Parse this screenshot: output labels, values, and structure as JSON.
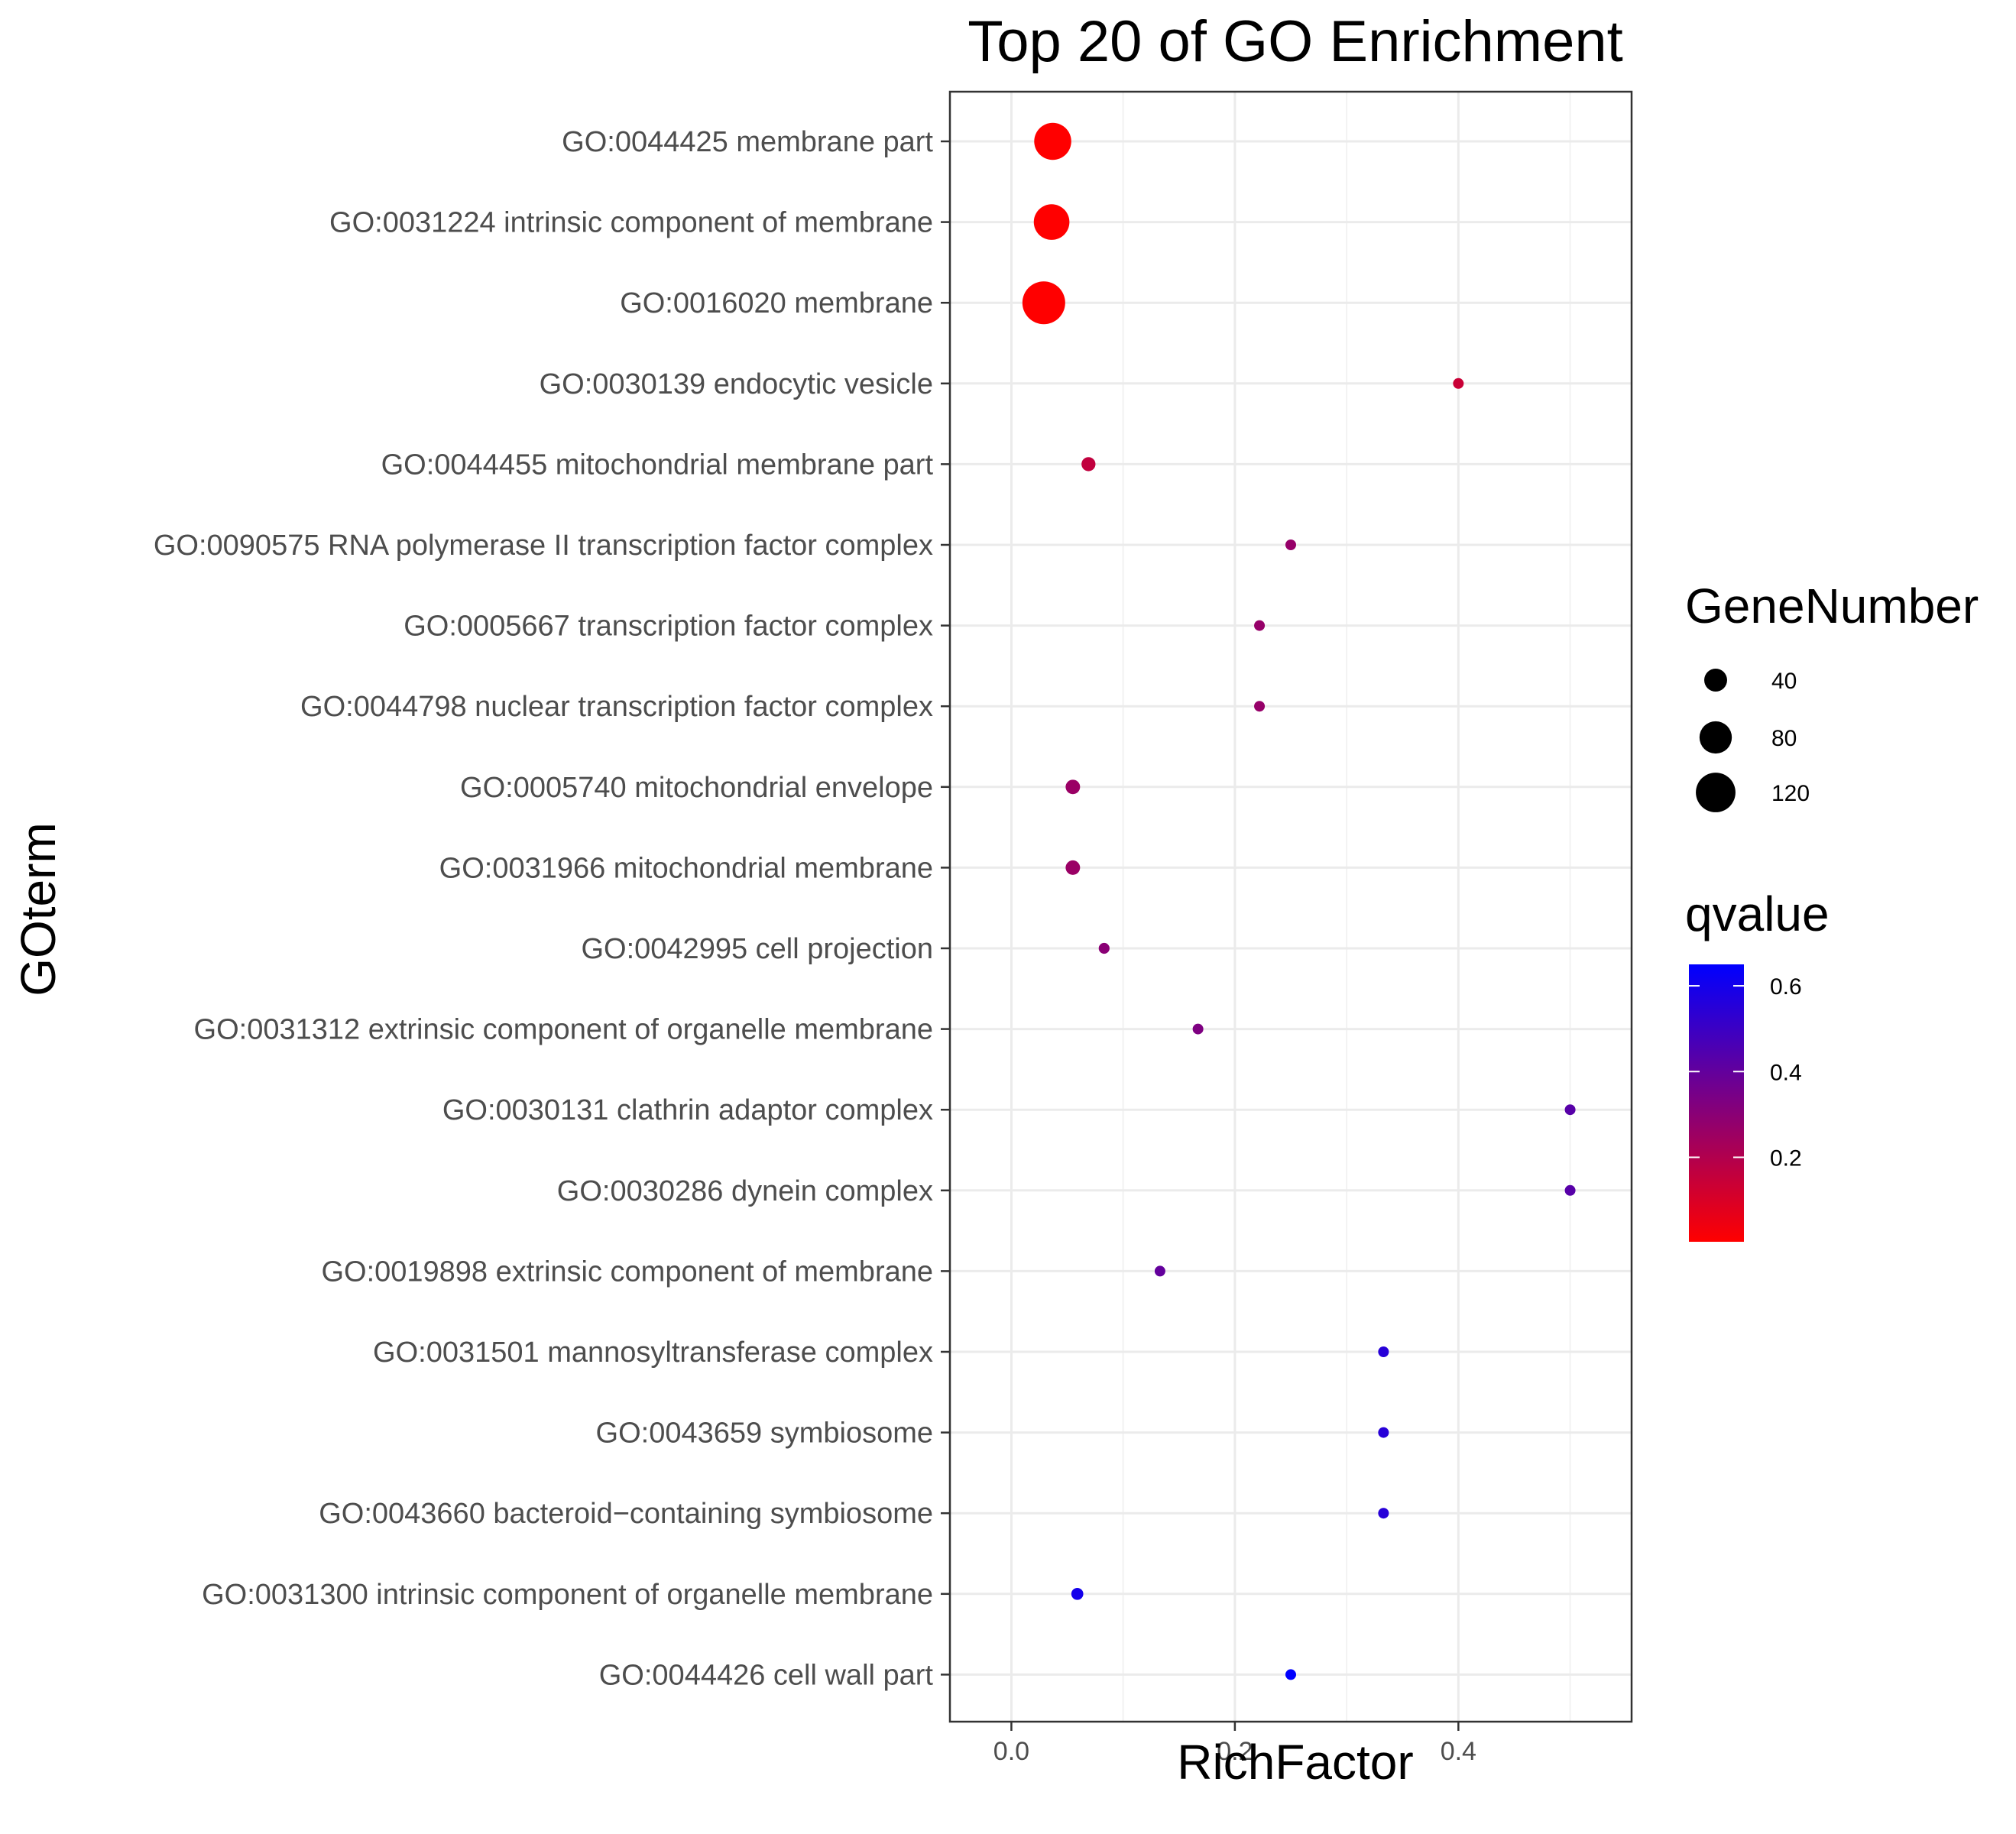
{
  "chart_data": {
    "type": "scatter",
    "title": "Top 20 of GO Enrichment",
    "xlabel": "RichFactor",
    "ylabel": "GOterm",
    "xlim": [
      -0.055,
      0.555
    ],
    "x_ticks": [
      0.0,
      0.2,
      0.4
    ],
    "x_tick_labels": [
      "0.0",
      "0.2",
      "0.4"
    ],
    "grid": true,
    "categories": [
      "GO:0044425 membrane part",
      "GO:0031224 intrinsic component of membrane",
      "GO:0016020 membrane",
      "GO:0030139 endocytic vesicle",
      "GO:0044455 mitochondrial membrane part",
      "GO:0090575 RNA polymerase II transcription factor complex",
      "GO:0005667 transcription factor complex",
      "GO:0044798 nuclear transcription factor complex",
      "GO:0005740 mitochondrial envelope",
      "GO:0031966 mitochondrial membrane",
      "GO:0042995 cell projection",
      "GO:0031312 extrinsic component of organelle membrane",
      "GO:0030131 clathrin adaptor complex",
      "GO:0030286 dynein complex",
      "GO:0019898 extrinsic component of membrane",
      "GO:0031501 mannosyltransferase complex",
      "GO:0043659 symbiosome",
      "GO:0043660 bacteroid−containing symbiosome",
      "GO:0031300 intrinsic component of organelle membrane",
      "GO:0044426 cell wall part"
    ],
    "points": [
      {
        "term": "GO:0044425 membrane part",
        "rich_factor": 0.037,
        "gene_number": 105,
        "qvalue": 0.003
      },
      {
        "term": "GO:0031224 intrinsic component of membrane",
        "rich_factor": 0.036,
        "gene_number": 97,
        "qvalue": 0.003
      },
      {
        "term": "GO:0016020 membrane",
        "rich_factor": 0.029,
        "gene_number": 140,
        "qvalue": 0.003
      },
      {
        "term": "GO:0030139 endocytic vesicle",
        "rich_factor": 0.4,
        "gene_number": 2,
        "qvalue": 0.14
      },
      {
        "term": "GO:0044455 mitochondrial membrane part",
        "rich_factor": 0.069,
        "gene_number": 15,
        "qvalue": 0.16
      },
      {
        "term": "GO:0090575 RNA polymerase II transcription factor complex",
        "rich_factor": 0.25,
        "gene_number": 3,
        "qvalue": 0.27
      },
      {
        "term": "GO:0005667 transcription factor complex",
        "rich_factor": 0.222,
        "gene_number": 4,
        "qvalue": 0.27
      },
      {
        "term": "GO:0044798 nuclear transcription factor complex",
        "rich_factor": 0.222,
        "gene_number": 4,
        "qvalue": 0.27
      },
      {
        "term": "GO:0005740 mitochondrial envelope",
        "rich_factor": 0.055,
        "gene_number": 16,
        "qvalue": 0.26
      },
      {
        "term": "GO:0031966 mitochondrial membrane",
        "rich_factor": 0.055,
        "gene_number": 16,
        "qvalue": 0.26
      },
      {
        "term": "GO:0042995 cell projection",
        "rich_factor": 0.083,
        "gene_number": 9,
        "qvalue": 0.3
      },
      {
        "term": "GO:0031312 extrinsic component of organelle membrane",
        "rich_factor": 0.167,
        "gene_number": 4,
        "qvalue": 0.33
      },
      {
        "term": "GO:0030131 clathrin adaptor complex",
        "rich_factor": 0.5,
        "gene_number": 1,
        "qvalue": 0.43
      },
      {
        "term": "GO:0030286 dynein complex",
        "rich_factor": 0.5,
        "gene_number": 1,
        "qvalue": 0.43
      },
      {
        "term": "GO:0019898 extrinsic component of membrane",
        "rich_factor": 0.133,
        "gene_number": 4,
        "qvalue": 0.4
      },
      {
        "term": "GO:0031501 mannosyltransferase complex",
        "rich_factor": 0.333,
        "gene_number": 1,
        "qvalue": 0.55
      },
      {
        "term": "GO:0043659 symbiosome",
        "rich_factor": 0.333,
        "gene_number": 1,
        "qvalue": 0.55
      },
      {
        "term": "GO:0043660 bacteroid−containing symbiosome",
        "rich_factor": 0.333,
        "gene_number": 1,
        "qvalue": 0.55
      },
      {
        "term": "GO:0031300 intrinsic component of organelle membrane",
        "rich_factor": 0.059,
        "gene_number": 11,
        "qvalue": 0.6
      },
      {
        "term": "GO:0044426 cell wall part",
        "rich_factor": 0.25,
        "gene_number": 1,
        "qvalue": 0.65
      }
    ],
    "size_legend": {
      "title": "GeneNumber",
      "values": [
        40,
        80,
        120
      ],
      "labels": [
        "40",
        "80",
        "120"
      ]
    },
    "color_legend": {
      "title": "qvalue",
      "min": 0.003,
      "max": 0.65,
      "low_color": "#ff0000",
      "high_color": "#0000ff",
      "ticks": [
        0.2,
        0.4,
        0.6
      ],
      "tick_labels": [
        "0.2",
        "0.4",
        "0.6"
      ]
    },
    "legend_position": "right"
  }
}
